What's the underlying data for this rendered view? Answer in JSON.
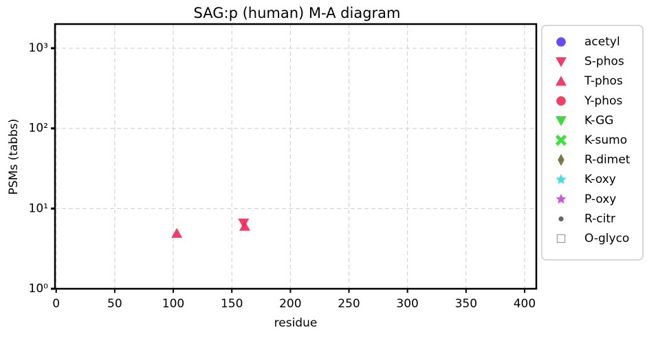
{
  "chart_data": {
    "type": "scatter",
    "title": "SAG:p (human) M-A diagram",
    "x_label": "residue",
    "y_label": "PSMs (tabbs)",
    "xlim": [
      -1,
      410
    ],
    "xticks": [
      0,
      50,
      100,
      150,
      200,
      250,
      300,
      350,
      400
    ],
    "ylim": [
      1,
      2000
    ],
    "y_scale": "log",
    "yticks": [
      {
        "value": 1,
        "label": "10⁰"
      },
      {
        "value": 10,
        "label": "10¹"
      },
      {
        "value": 100,
        "label": "10²"
      },
      {
        "value": 1000,
        "label": "10³"
      }
    ],
    "grid": true,
    "legend": "outside right",
    "series": [
      {
        "name": "acetyl",
        "color": "#4a2cf0",
        "marker": "circle",
        "x": [],
        "y": []
      },
      {
        "name": "S-phos",
        "color": "#f0285a",
        "marker": "triangle-down",
        "x": [
          160
        ],
        "y": [
          6.6
        ]
      },
      {
        "name": "T-phos",
        "color": "#f0285a",
        "marker": "triangle-up",
        "x": [
          103,
          161
        ],
        "y": [
          4.9,
          6
        ]
      },
      {
        "name": "Y-phos",
        "color": "#f01e4a",
        "marker": "circle",
        "x": [],
        "y": []
      },
      {
        "name": "K-GG",
        "color": "#2ed42e",
        "marker": "triangle-down",
        "x": [],
        "y": []
      },
      {
        "name": "K-sumo",
        "color": "#3ee03e",
        "marker": "x",
        "x": [],
        "y": []
      },
      {
        "name": "R-dimet",
        "color": "#6b6a35",
        "marker": "diamond",
        "x": [],
        "y": []
      },
      {
        "name": "K-oxy",
        "color": "#30d8d8",
        "marker": "star",
        "x": [],
        "y": []
      },
      {
        "name": "P-oxy",
        "color": "#c944e0",
        "marker": "star",
        "x": [],
        "y": []
      },
      {
        "name": "R-citr",
        "color": "#666666",
        "marker": "small-circle",
        "x": [],
        "y": []
      },
      {
        "name": "O-glyco",
        "color": "#999999",
        "marker": "hollow-square",
        "x": [],
        "y": []
      }
    ]
  }
}
